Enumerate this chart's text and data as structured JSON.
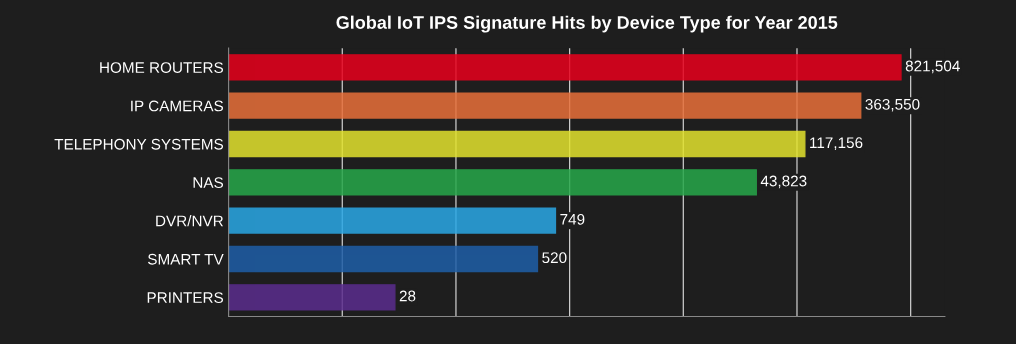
{
  "chart_data": {
    "type": "bar",
    "orientation": "horizontal",
    "title": "Global IoT IPS Signature Hits by Device Type for Year 2015",
    "categories": [
      "HOME ROUTERS",
      "IP CAMERAS",
      "TELEPHONY SYSTEMS",
      "NAS",
      "DVR/NVR",
      "SMART TV",
      "PRINTERS"
    ],
    "values": [
      821504,
      363550,
      117156,
      43823,
      749,
      520,
      28
    ],
    "colors": [
      "#e8001c",
      "#e8703a",
      "#e3e32e",
      "#27a84a",
      "#2aa8e6",
      "#1f5fa8",
      "#5b2d8e"
    ],
    "log": "x",
    "xlim": [
      1,
      2000000
    ],
    "xticks": [
      {
        "value": 10,
        "label": null
      },
      {
        "value": 100,
        "label": null
      },
      {
        "value": 1000,
        "label": null
      },
      {
        "value": 10000,
        "label": null
      },
      {
        "value": 100000,
        "label": null
      },
      {
        "value": 1000000,
        "label": null
      }
    ],
    "value_labels": [
      "821,504",
      "363,550",
      "117,156",
      "43,823",
      "749",
      "520",
      "28"
    ],
    "grid": "x",
    "tick_labels": "y"
  }
}
